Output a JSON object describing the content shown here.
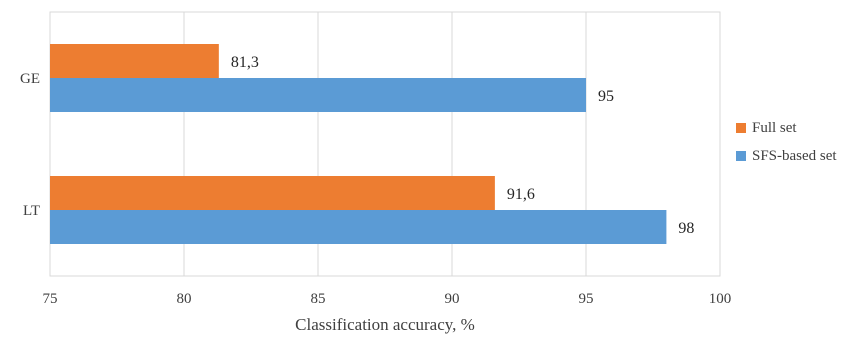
{
  "chart_data": {
    "type": "bar",
    "orientation": "horizontal",
    "categories": [
      "GE",
      "LT"
    ],
    "series": [
      {
        "name": "Full set",
        "color": "#ED7D31",
        "values": [
          81.3,
          91.6
        ],
        "labels": [
          "81,3",
          "91,6"
        ]
      },
      {
        "name": "SFS-based set",
        "color": "#5B9BD5",
        "values": [
          95,
          98
        ],
        "labels": [
          "95",
          "98"
        ]
      }
    ],
    "xlabel": "Classification accuracy, %",
    "ylabel": "",
    "xlim": [
      75,
      100
    ],
    "xticks": [
      75,
      80,
      85,
      90,
      95,
      100
    ],
    "grid": true,
    "legend_position": "right"
  }
}
